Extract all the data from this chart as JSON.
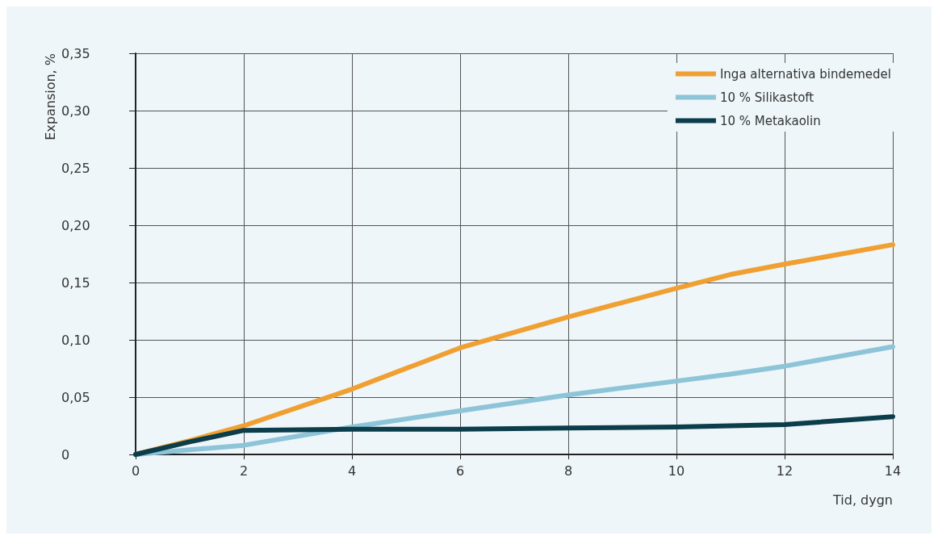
{
  "chart_data": {
    "type": "line",
    "xlabel": "Tid, dygn",
    "ylabel": "Expansion, %",
    "x": [
      0,
      1,
      2,
      4,
      6,
      8,
      10,
      11,
      12,
      14
    ],
    "series": [
      {
        "name": "Inga alternativa bindemedel",
        "color": "#f0a032",
        "values": [
          0,
          0.012,
          0.025,
          0.057,
          0.093,
          0.12,
          0.145,
          0.157,
          0.166,
          0.183
        ]
      },
      {
        "name": "10 % Silikastoft",
        "color": "#8ec4d8",
        "values": [
          0,
          0.004,
          0.008,
          0.024,
          0.038,
          0.052,
          0.064,
          0.07,
          0.077,
          0.094
        ]
      },
      {
        "name": "10 % Metakaolin",
        "color": "#0b3d4a",
        "values": [
          0,
          0.011,
          0.021,
          0.022,
          0.022,
          0.023,
          0.024,
          0.025,
          0.026,
          0.033
        ]
      }
    ],
    "xlim": [
      0,
      14
    ],
    "xticks": [
      0,
      2,
      4,
      6,
      8,
      10,
      12,
      14
    ],
    "ylim": [
      0,
      0.35
    ],
    "yticks": [
      {
        "value": 0,
        "label": "0"
      },
      {
        "value": 0.05,
        "label": "0,05"
      },
      {
        "value": 0.1,
        "label": "0,10"
      },
      {
        "value": 0.15,
        "label": "0,15"
      },
      {
        "value": 0.2,
        "label": "0,20"
      },
      {
        "value": 0.25,
        "label": "0,25"
      },
      {
        "value": 0.3,
        "label": "0,30"
      },
      {
        "value": 0.35,
        "label": "0,35"
      }
    ],
    "grid": true,
    "legend": "top right",
    "marker": "none",
    "line_style": "solid"
  }
}
